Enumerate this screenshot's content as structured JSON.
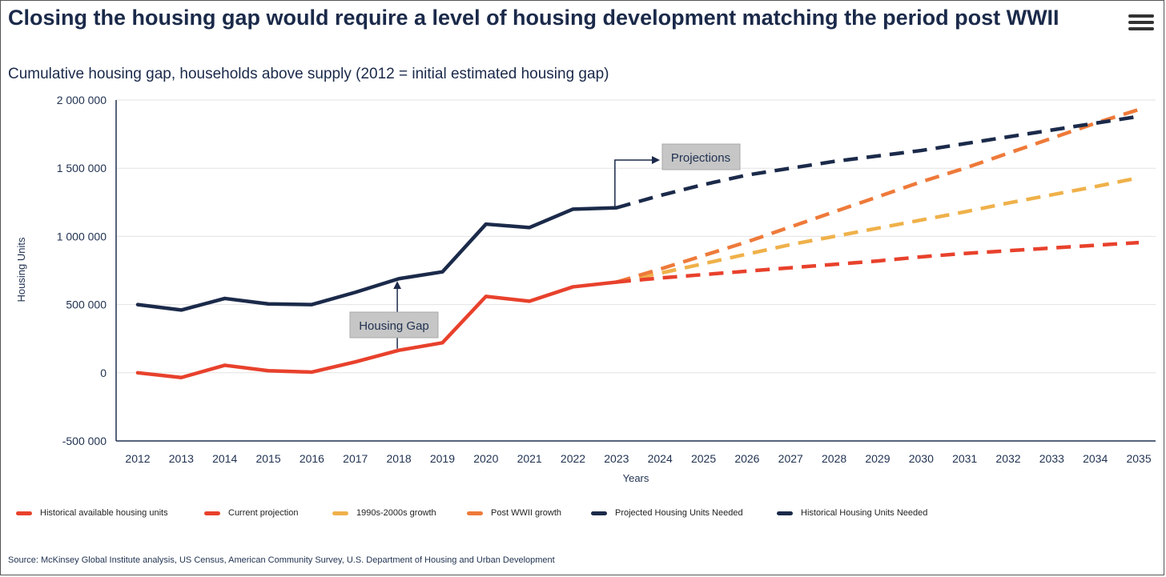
{
  "header": {
    "title": "Closing the housing gap would require a level of housing development matching the period post WWII",
    "subtitle": "Cumulative housing gap, households above supply (2012 = initial estimated housing gap)",
    "menu_icon": "hamburger-menu-icon"
  },
  "chart_data": {
    "type": "line",
    "xlabel": "Years",
    "ylabel": "Housing Units",
    "ylim": [
      -500000,
      2000000
    ],
    "yticks": [
      -500000,
      0,
      500000,
      1000000,
      1500000,
      2000000
    ],
    "ytick_labels": [
      "-500 000",
      "0",
      "500 000",
      "1 000 000",
      "1 500 000",
      "2 000 000"
    ],
    "categories": [
      "2012",
      "2013",
      "2014",
      "2015",
      "2016",
      "2017",
      "2018",
      "2019",
      "2020",
      "2021",
      "2022",
      "2023",
      "2024",
      "2025",
      "2026",
      "2027",
      "2028",
      "2029",
      "2030",
      "2031",
      "2032",
      "2033",
      "2034",
      "2035"
    ],
    "grid": "horizontal",
    "legend_position": "bottom",
    "series": [
      {
        "name": "Historical available housing units",
        "color": "#e8412c",
        "dashed": false,
        "x": [
          2012,
          2013,
          2014,
          2015,
          2016,
          2017,
          2018,
          2019,
          2020,
          2021,
          2022,
          2023
        ],
        "values": [
          0,
          -35000,
          55000,
          15000,
          5000,
          80000,
          165000,
          220000,
          560000,
          525000,
          630000,
          665000
        ]
      },
      {
        "name": "Current projection",
        "color": "#e8412c",
        "dashed": true,
        "x": [
          2023,
          2024,
          2025,
          2026,
          2027,
          2028,
          2029,
          2030,
          2031,
          2032,
          2033,
          2034,
          2035
        ],
        "values": [
          665000,
          695000,
          720000,
          745000,
          770000,
          795000,
          820000,
          850000,
          875000,
          895000,
          915000,
          935000,
          955000
        ]
      },
      {
        "name": "1990s-2000s growth",
        "color": "#efb14a",
        "dashed": true,
        "x": [
          2023,
          2024,
          2025,
          2026,
          2027,
          2028,
          2029,
          2030,
          2031,
          2032,
          2033,
          2034,
          2035
        ],
        "values": [
          665000,
          730000,
          800000,
          870000,
          940000,
          1000000,
          1060000,
          1120000,
          1180000,
          1245000,
          1305000,
          1365000,
          1430000
        ]
      },
      {
        "name": "Post WWII growth",
        "color": "#ee7a3a",
        "dashed": true,
        "x": [
          2023,
          2024,
          2025,
          2026,
          2027,
          2028,
          2029,
          2030,
          2031,
          2032,
          2033,
          2034,
          2035
        ],
        "values": [
          665000,
          760000,
          860000,
          960000,
          1070000,
          1180000,
          1290000,
          1400000,
          1500000,
          1610000,
          1720000,
          1830000,
          1930000
        ]
      },
      {
        "name": "Projected Housing Units Needed",
        "color": "#1b2a4a",
        "dashed": true,
        "x": [
          2023,
          2024,
          2025,
          2026,
          2027,
          2028,
          2029,
          2030,
          2031,
          2032,
          2033,
          2034,
          2035
        ],
        "values": [
          1210000,
          1300000,
          1380000,
          1450000,
          1500000,
          1550000,
          1590000,
          1630000,
          1680000,
          1730000,
          1780000,
          1830000,
          1880000
        ]
      },
      {
        "name": "Historical Housing Units Needed",
        "color": "#1b2a4a",
        "dashed": false,
        "x": [
          2012,
          2013,
          2014,
          2015,
          2016,
          2017,
          2018,
          2019,
          2020,
          2021,
          2022,
          2023
        ],
        "values": [
          500000,
          460000,
          545000,
          505000,
          500000,
          590000,
          690000,
          740000,
          1090000,
          1065000,
          1200000,
          1210000
        ]
      }
    ],
    "annotations": [
      {
        "text": "Housing Gap",
        "x": 2018,
        "arrow_from": 165000,
        "arrow_to": 690000
      },
      {
        "text": "Projections",
        "x": 2023
      }
    ]
  },
  "footer": {
    "source": "Source: McKinsey Global Institute analysis, US Census, American Community Survey, U.S. Department of Housing and Urban Development"
  }
}
